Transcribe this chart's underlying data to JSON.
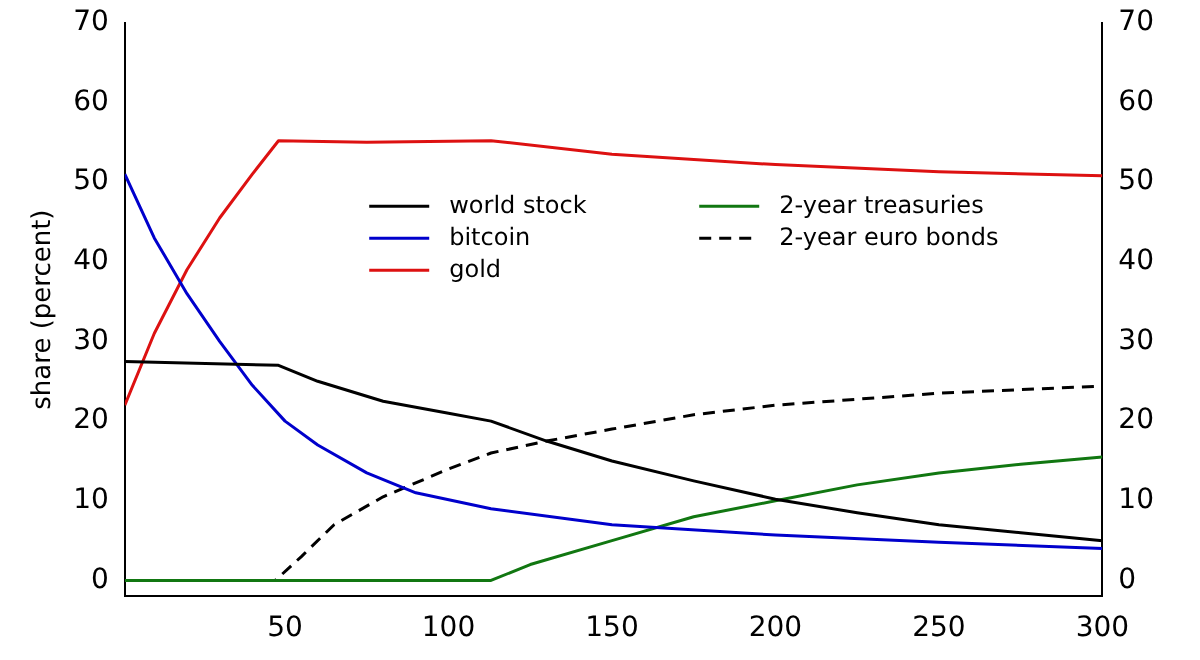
{
  "chart_data": {
    "type": "line",
    "ylabel": "share (percent)",
    "xlim": [
      1,
      300
    ],
    "xticks": [
      50,
      100,
      150,
      200,
      250,
      300
    ],
    "ylim": [
      -2,
      70
    ],
    "yticks": [
      0,
      10,
      20,
      30,
      40,
      50,
      60,
      70
    ],
    "y2lim": [
      -2,
      70
    ],
    "y2ticks": [
      0,
      10,
      20,
      30,
      40,
      50,
      60,
      70
    ],
    "legend": "center",
    "grid": false,
    "marker": "none",
    "series": [
      {
        "name": "world stock",
        "color": "#000000",
        "x": [
          1,
          48,
          60,
          80,
          100,
          113,
          130,
          150,
          175,
          200,
          225,
          250,
          275,
          300
        ],
        "values": [
          27.5,
          27,
          25,
          22.5,
          21,
          20,
          17.5,
          15,
          12.5,
          10.2,
          8.5,
          7,
          6,
          5
        ]
      },
      {
        "name": "bitcoin",
        "color": "#0000cc",
        "x": [
          1,
          10,
          20,
          30,
          40,
          50,
          60,
          75,
          90,
          113,
          150,
          200,
          250,
          300
        ],
        "values": [
          51,
          43,
          36,
          30,
          24.5,
          20,
          17,
          13.5,
          11,
          9,
          7,
          5.7,
          4.8,
          4
        ]
      },
      {
        "name": "gold",
        "color": "#dd1111",
        "x": [
          1,
          10,
          20,
          30,
          40,
          48,
          75,
          113,
          150,
          200,
          250,
          300
        ],
        "values": [
          22,
          31,
          39,
          45.5,
          51,
          55.2,
          55,
          55.2,
          53.5,
          52.2,
          51.3,
          50.8
        ]
      },
      {
        "name": "2-year treasuries",
        "color": "#117711",
        "x": [
          1,
          113,
          125,
          150,
          175,
          200,
          225,
          250,
          275,
          300
        ],
        "values": [
          0,
          0,
          2,
          5,
          8,
          10,
          12,
          13.5,
          14.6,
          15.5
        ]
      },
      {
        "name": "2-year euro bonds",
        "color": "#000000",
        "line_style": "dashed",
        "x": [
          1,
          47,
          55,
          65,
          80,
          100,
          113,
          130,
          150,
          175,
          200,
          250,
          300
        ],
        "values": [
          0,
          0,
          3,
          7,
          10.5,
          14,
          16,
          17.5,
          19,
          20.8,
          22,
          23.5,
          24.4
        ]
      }
    ]
  }
}
